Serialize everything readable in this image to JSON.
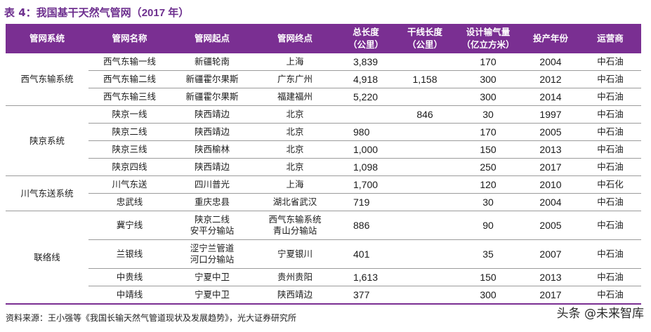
{
  "title": {
    "prefix": "表 4：",
    "text": "我国基干天然气管网（",
    "year": "2017 年",
    "suffix": "）"
  },
  "headers": {
    "system": "管网系统",
    "name": "管网名称",
    "start": "管网起点",
    "end": "管网终点",
    "total_length": [
      "总长度",
      "（公里）"
    ],
    "trunk_length": [
      "干线长度",
      "（公里）"
    ],
    "capacity": [
      "设计输气量",
      "（亿立方米）"
    ],
    "year": "投产年份",
    "operator": "运营商"
  },
  "groups": [
    {
      "system": "西气东输系统",
      "rows": [
        {
          "name": "西气东输一线",
          "start": [
            "新疆轮南"
          ],
          "end": [
            "上海"
          ],
          "total": "3,839",
          "trunk": "",
          "capacity": "170",
          "year": "2004",
          "operator": "中石油"
        },
        {
          "name": "西气东输二线",
          "start": [
            "新疆霍尔果斯"
          ],
          "end": [
            "广东广州"
          ],
          "total": "4,918",
          "trunk": "1,158",
          "capacity": "300",
          "year": "2012",
          "operator": "中石油"
        },
        {
          "name": "西气东输三线",
          "start": [
            "新疆霍尔果斯"
          ],
          "end": [
            "福建福州"
          ],
          "total": "5,220",
          "trunk": "",
          "capacity": "300",
          "year": "2014",
          "operator": "中石油"
        }
      ]
    },
    {
      "system": "陕京系统",
      "rows": [
        {
          "name": "陕京一线",
          "start": [
            "陕西靖边"
          ],
          "end": [
            "北京"
          ],
          "total": "",
          "trunk": "846",
          "capacity": "30",
          "year": "1997",
          "operator": "中石油"
        },
        {
          "name": "陕京二线",
          "start": [
            "陕西靖边"
          ],
          "end": [
            "北京"
          ],
          "total": "980",
          "trunk": "",
          "capacity": "170",
          "year": "2005",
          "operator": "中石油"
        },
        {
          "name": "陕京三线",
          "start": [
            "陕西榆林"
          ],
          "end": [
            "北京"
          ],
          "total": "1,000",
          "trunk": "",
          "capacity": "150",
          "year": "2013",
          "operator": "中石油"
        },
        {
          "name": "陕京四线",
          "start": [
            "陕西靖边"
          ],
          "end": [
            "北京"
          ],
          "total": "1,098",
          "trunk": "",
          "capacity": "250",
          "year": "2017",
          "operator": "中石油"
        }
      ]
    },
    {
      "system": "川气东送系统",
      "rows": [
        {
          "name": "川气东送",
          "start": [
            "四川普光"
          ],
          "end": [
            "上海"
          ],
          "total": "1,700",
          "trunk": "",
          "capacity": "120",
          "year": "2010",
          "operator": "中石化"
        },
        {
          "name": "忠武线",
          "start": [
            "重庆忠县"
          ],
          "end": [
            "湖北省武汉"
          ],
          "total": "719",
          "trunk": "",
          "capacity": "30",
          "year": "2004",
          "operator": "中石油"
        }
      ]
    },
    {
      "system": "联络线",
      "rows": [
        {
          "name": "冀宁线",
          "start": [
            "陕京二线",
            "安平分输站"
          ],
          "end": [
            "西气东输系统",
            "青山分输站"
          ],
          "total": "886",
          "trunk": "",
          "capacity": "90",
          "year": "2005",
          "operator": "中石油"
        },
        {
          "name": "兰银线",
          "start": [
            "涩宁兰管道",
            "河口分输站"
          ],
          "end": [
            "宁夏银川"
          ],
          "total": "401",
          "trunk": "",
          "capacity": "35",
          "year": "2007",
          "operator": "中石油"
        },
        {
          "name": "中贵线",
          "start": [
            "宁夏中卫"
          ],
          "end": [
            "贵州贵阳"
          ],
          "total": "1,613",
          "trunk": "",
          "capacity": "150",
          "year": "2013",
          "operator": "中石油"
        },
        {
          "name": "中靖线",
          "start": [
            "宁夏中卫"
          ],
          "end": [
            "陕西靖边"
          ],
          "total": "377",
          "trunk": "",
          "capacity": "300",
          "year": "2017",
          "operator": "中石油"
        }
      ]
    }
  ],
  "footer": "资料来源：王小强等《我国长输天然气管道现状及发展趋势》，光大证券研究所",
  "watermark": "头条 @未来智库",
  "colors": {
    "header_bg": "#7a2f92",
    "title": "#6d2f8e"
  }
}
